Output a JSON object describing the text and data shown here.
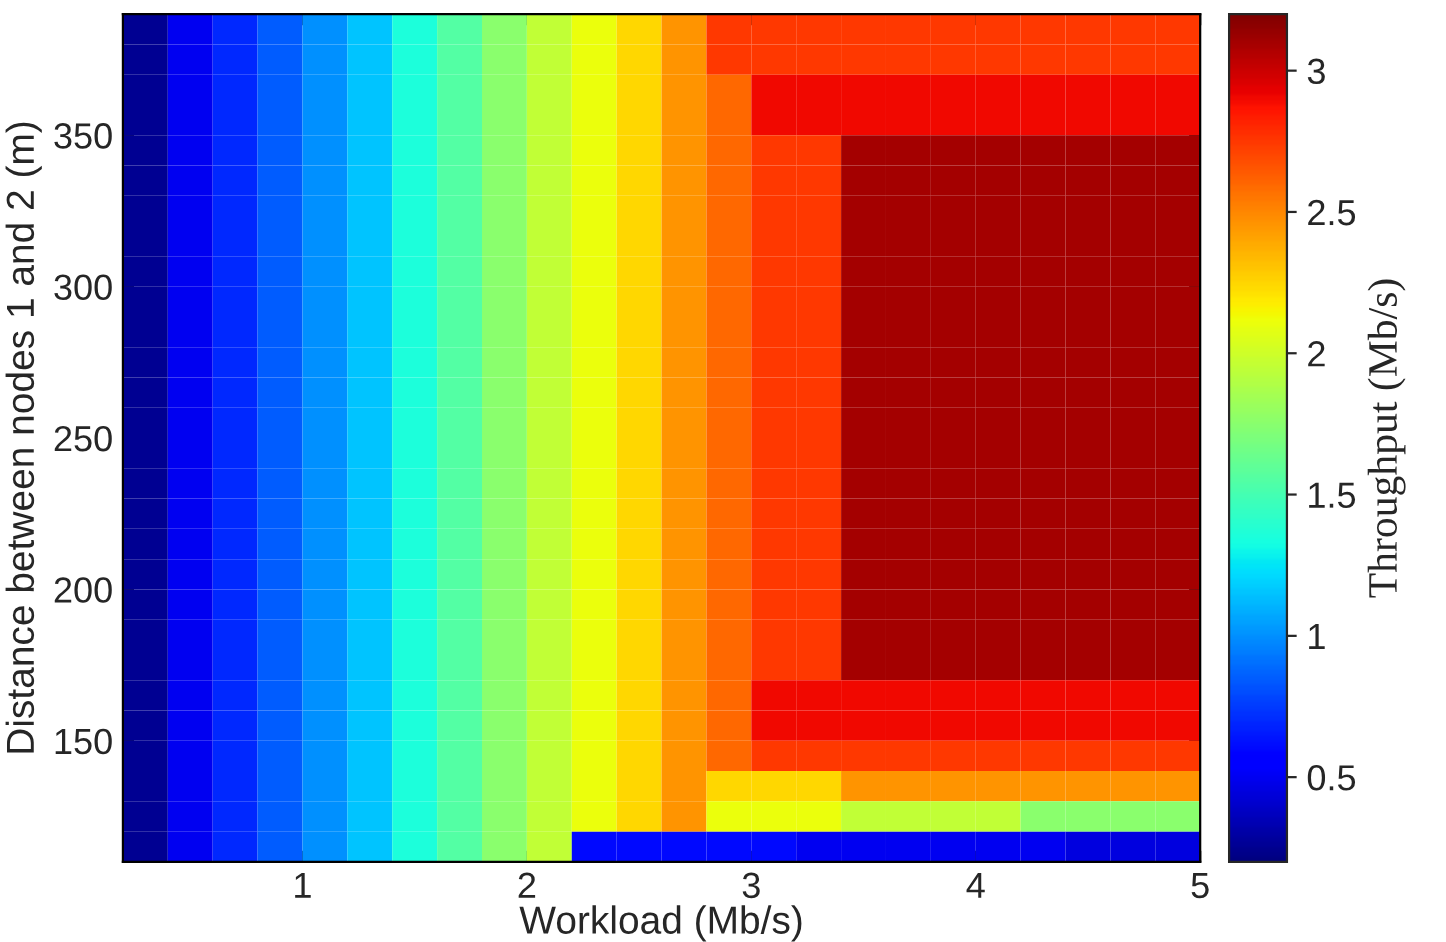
{
  "chart_data": {
    "type": "heatmap",
    "xlabel": "Workload (Mb/s)",
    "ylabel": "Distance between nodes 1 and 2 (m)",
    "clabel": "Throughput (Mb/s)",
    "x": [
      0.3,
      0.5,
      0.7,
      0.9,
      1.1,
      1.3,
      1.5,
      1.7,
      1.9,
      2.1,
      2.3,
      2.5,
      2.7,
      2.9,
      3.1,
      3.3,
      3.5,
      3.7,
      3.9,
      4.1,
      4.3,
      4.5,
      4.7,
      4.9
    ],
    "y": [
      385,
      375,
      365,
      355,
      345,
      335,
      325,
      315,
      305,
      295,
      285,
      275,
      265,
      255,
      245,
      235,
      225,
      215,
      205,
      195,
      185,
      175,
      165,
      155,
      145,
      135,
      125,
      115
    ],
    "cells": [
      [
        0.25,
        0.5,
        0.7,
        0.85,
        1.0,
        1.15,
        1.35,
        1.55,
        1.75,
        1.95,
        2.1,
        2.25,
        2.45,
        2.75,
        2.75,
        2.75,
        2.75,
        2.75,
        2.75,
        2.75,
        2.75,
        2.75,
        2.75,
        2.75
      ],
      [
        0.25,
        0.5,
        0.7,
        0.85,
        1.0,
        1.15,
        1.35,
        1.55,
        1.75,
        1.95,
        2.1,
        2.25,
        2.45,
        2.75,
        2.75,
        2.75,
        2.75,
        2.75,
        2.75,
        2.75,
        2.75,
        2.75,
        2.75,
        2.75
      ],
      [
        0.25,
        0.5,
        0.7,
        0.85,
        1.0,
        1.15,
        1.35,
        1.55,
        1.75,
        1.95,
        2.1,
        2.25,
        2.45,
        2.6,
        2.9,
        2.9,
        2.9,
        2.9,
        2.9,
        2.9,
        2.9,
        2.9,
        2.9,
        2.9
      ],
      [
        0.25,
        0.5,
        0.7,
        0.85,
        1.0,
        1.15,
        1.35,
        1.55,
        1.75,
        1.95,
        2.1,
        2.25,
        2.45,
        2.6,
        2.9,
        2.9,
        2.9,
        2.9,
        2.9,
        2.9,
        2.9,
        2.9,
        2.9,
        2.9
      ],
      [
        0.25,
        0.5,
        0.7,
        0.85,
        1.0,
        1.15,
        1.35,
        1.55,
        1.75,
        1.95,
        2.1,
        2.25,
        2.45,
        2.6,
        2.75,
        2.75,
        3.1,
        3.1,
        3.1,
        3.1,
        3.1,
        3.1,
        3.1,
        3.1
      ],
      [
        0.25,
        0.5,
        0.7,
        0.85,
        1.0,
        1.15,
        1.35,
        1.55,
        1.75,
        1.95,
        2.1,
        2.25,
        2.45,
        2.6,
        2.75,
        2.75,
        3.1,
        3.1,
        3.1,
        3.1,
        3.1,
        3.1,
        3.1,
        3.1
      ],
      [
        0.25,
        0.5,
        0.7,
        0.85,
        1.0,
        1.15,
        1.35,
        1.55,
        1.75,
        1.95,
        2.1,
        2.25,
        2.45,
        2.6,
        2.75,
        2.75,
        3.1,
        3.1,
        3.1,
        3.1,
        3.1,
        3.1,
        3.1,
        3.1
      ],
      [
        0.25,
        0.5,
        0.7,
        0.85,
        1.0,
        1.15,
        1.35,
        1.55,
        1.75,
        1.95,
        2.1,
        2.25,
        2.45,
        2.6,
        2.75,
        2.75,
        3.1,
        3.1,
        3.1,
        3.1,
        3.1,
        3.1,
        3.1,
        3.1
      ],
      [
        0.25,
        0.5,
        0.7,
        0.85,
        1.0,
        1.15,
        1.35,
        1.55,
        1.75,
        1.95,
        2.1,
        2.25,
        2.45,
        2.6,
        2.75,
        2.75,
        3.1,
        3.1,
        3.1,
        3.1,
        3.1,
        3.1,
        3.1,
        3.1
      ],
      [
        0.25,
        0.5,
        0.7,
        0.85,
        1.0,
        1.15,
        1.35,
        1.55,
        1.75,
        1.95,
        2.1,
        2.25,
        2.45,
        2.6,
        2.75,
        2.75,
        3.1,
        3.1,
        3.1,
        3.1,
        3.1,
        3.1,
        3.1,
        3.1
      ],
      [
        0.25,
        0.5,
        0.7,
        0.85,
        1.0,
        1.15,
        1.35,
        1.55,
        1.75,
        1.95,
        2.1,
        2.25,
        2.45,
        2.6,
        2.75,
        2.75,
        3.1,
        3.1,
        3.1,
        3.1,
        3.1,
        3.1,
        3.1,
        3.1
      ],
      [
        0.25,
        0.5,
        0.7,
        0.85,
        1.0,
        1.15,
        1.35,
        1.55,
        1.75,
        1.95,
        2.1,
        2.25,
        2.45,
        2.6,
        2.75,
        2.75,
        3.1,
        3.1,
        3.1,
        3.1,
        3.1,
        3.1,
        3.1,
        3.1
      ],
      [
        0.25,
        0.5,
        0.7,
        0.85,
        1.0,
        1.15,
        1.35,
        1.55,
        1.75,
        1.95,
        2.1,
        2.25,
        2.45,
        2.6,
        2.75,
        2.75,
        3.1,
        3.1,
        3.1,
        3.1,
        3.1,
        3.1,
        3.1,
        3.1
      ],
      [
        0.25,
        0.5,
        0.7,
        0.85,
        1.0,
        1.15,
        1.35,
        1.55,
        1.75,
        1.95,
        2.1,
        2.25,
        2.45,
        2.6,
        2.75,
        2.75,
        3.1,
        3.1,
        3.1,
        3.1,
        3.1,
        3.1,
        3.1,
        3.1
      ],
      [
        0.25,
        0.5,
        0.7,
        0.85,
        1.0,
        1.15,
        1.35,
        1.55,
        1.75,
        1.95,
        2.1,
        2.25,
        2.45,
        2.6,
        2.75,
        2.75,
        3.1,
        3.1,
        3.1,
        3.1,
        3.1,
        3.1,
        3.1,
        3.1
      ],
      [
        0.25,
        0.5,
        0.7,
        0.85,
        1.0,
        1.15,
        1.35,
        1.55,
        1.75,
        1.95,
        2.1,
        2.25,
        2.45,
        2.6,
        2.75,
        2.75,
        3.1,
        3.1,
        3.1,
        3.1,
        3.1,
        3.1,
        3.1,
        3.1
      ],
      [
        0.25,
        0.5,
        0.7,
        0.85,
        1.0,
        1.15,
        1.35,
        1.55,
        1.75,
        1.95,
        2.1,
        2.25,
        2.45,
        2.6,
        2.75,
        2.75,
        3.1,
        3.1,
        3.1,
        3.1,
        3.1,
        3.1,
        3.1,
        3.1
      ],
      [
        0.25,
        0.5,
        0.7,
        0.85,
        1.0,
        1.15,
        1.35,
        1.55,
        1.75,
        1.95,
        2.1,
        2.25,
        2.45,
        2.6,
        2.75,
        2.75,
        3.1,
        3.1,
        3.1,
        3.1,
        3.1,
        3.1,
        3.1,
        3.1
      ],
      [
        0.25,
        0.5,
        0.7,
        0.85,
        1.0,
        1.15,
        1.35,
        1.55,
        1.75,
        1.95,
        2.1,
        2.25,
        2.45,
        2.6,
        2.75,
        2.75,
        3.1,
        3.1,
        3.1,
        3.1,
        3.1,
        3.1,
        3.1,
        3.1
      ],
      [
        0.25,
        0.5,
        0.7,
        0.85,
        1.0,
        1.15,
        1.35,
        1.55,
        1.75,
        1.95,
        2.1,
        2.25,
        2.45,
        2.6,
        2.75,
        2.75,
        3.1,
        3.1,
        3.1,
        3.1,
        3.1,
        3.1,
        3.1,
        3.1
      ],
      [
        0.25,
        0.5,
        0.7,
        0.85,
        1.0,
        1.15,
        1.35,
        1.55,
        1.75,
        1.95,
        2.1,
        2.25,
        2.45,
        2.6,
        2.75,
        2.75,
        3.1,
        3.1,
        3.1,
        3.1,
        3.1,
        3.1,
        3.1,
        3.1
      ],
      [
        0.25,
        0.5,
        0.7,
        0.85,
        1.0,
        1.15,
        1.35,
        1.55,
        1.75,
        1.95,
        2.1,
        2.25,
        2.45,
        2.6,
        2.75,
        2.75,
        3.1,
        3.1,
        3.1,
        3.1,
        3.1,
        3.1,
        3.1,
        3.1
      ],
      [
        0.25,
        0.5,
        0.7,
        0.85,
        1.0,
        1.15,
        1.35,
        1.55,
        1.75,
        1.95,
        2.1,
        2.25,
        2.45,
        2.6,
        2.9,
        2.9,
        2.9,
        2.9,
        2.9,
        2.9,
        2.9,
        2.9,
        2.9,
        2.9
      ],
      [
        0.25,
        0.5,
        0.7,
        0.85,
        1.0,
        1.15,
        1.35,
        1.55,
        1.75,
        1.95,
        2.1,
        2.25,
        2.45,
        2.6,
        2.9,
        2.9,
        2.9,
        2.9,
        2.9,
        2.9,
        2.9,
        2.9,
        2.9,
        2.9
      ],
      [
        0.25,
        0.5,
        0.7,
        0.85,
        1.0,
        1.15,
        1.35,
        1.55,
        1.75,
        1.95,
        2.1,
        2.25,
        2.45,
        2.6,
        2.75,
        2.75,
        2.75,
        2.75,
        2.75,
        2.75,
        2.75,
        2.75,
        2.75,
        2.75
      ],
      [
        0.25,
        0.5,
        0.7,
        0.85,
        1.0,
        1.15,
        1.35,
        1.55,
        1.75,
        1.95,
        2.1,
        2.25,
        2.45,
        2.25,
        2.25,
        2.25,
        2.45,
        2.45,
        2.45,
        2.45,
        2.45,
        2.45,
        2.45,
        2.45
      ],
      [
        0.25,
        0.5,
        0.7,
        0.85,
        1.0,
        1.15,
        1.35,
        1.55,
        1.75,
        1.95,
        2.1,
        2.25,
        2.45,
        2.1,
        2.1,
        2.1,
        1.95,
        1.95,
        1.95,
        1.95,
        1.75,
        1.75,
        1.75,
        1.75
      ],
      [
        0.25,
        0.5,
        0.7,
        0.85,
        1.0,
        1.15,
        1.35,
        1.55,
        1.75,
        1.95,
        0.6,
        0.6,
        0.6,
        0.6,
        0.6,
        0.5,
        0.5,
        0.5,
        0.5,
        0.5,
        0.5,
        0.45,
        0.45,
        0.45
      ]
    ],
    "xlim": [
      0.2,
      5
    ],
    "ylim": [
      110,
      390
    ],
    "xticks": [
      1,
      2,
      3,
      4,
      5
    ],
    "yticks": [
      150,
      200,
      250,
      300,
      350
    ],
    "clim": [
      0.2,
      3.2
    ],
    "cticks": [
      0.5,
      1,
      1.5,
      2,
      2.5,
      3
    ]
  }
}
